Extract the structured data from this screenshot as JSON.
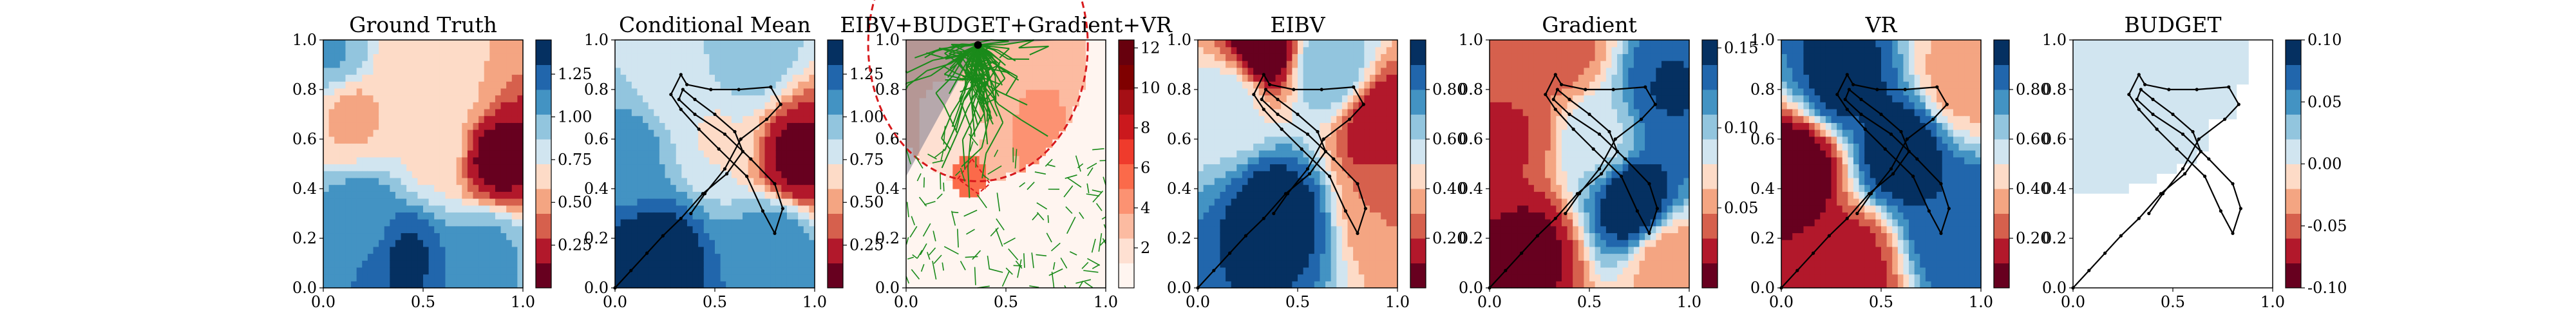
{
  "chart_data": [
    {
      "type": "heatmap",
      "title": "Ground Truth",
      "xlim": [
        0,
        1
      ],
      "ylim": [
        0,
        1
      ],
      "xticks": [
        "0.0",
        "0.5",
        "1.0"
      ],
      "yticks": [
        "0.0",
        "0.2",
        "0.4",
        "0.6",
        "0.8",
        "1.0"
      ],
      "colormap": "RdBu",
      "colorbar": {
        "range": [
          0.0,
          1.45
        ],
        "ticks": [
          0.25,
          0.5,
          0.75,
          1.0,
          1.25
        ]
      },
      "field": [
        {
          "x": 0.87,
          "y": 0.52,
          "v": 0.08
        },
        {
          "x": 0.45,
          "y": 0.92,
          "v": 0.6
        },
        {
          "x": 0.62,
          "y": 0.78,
          "v": 0.62
        },
        {
          "x": 0.15,
          "y": 0.7,
          "v": 0.55
        },
        {
          "x": 0.55,
          "y": 0.55,
          "v": 0.7
        },
        {
          "x": 0.42,
          "y": 0.12,
          "v": 1.32
        },
        {
          "x": 0.2,
          "y": 0.28,
          "v": 1.1
        },
        {
          "x": 0.8,
          "y": 0.15,
          "v": 1.05
        },
        {
          "x": 0.05,
          "y": 0.95,
          "v": 1.02
        }
      ]
    },
    {
      "type": "heatmap",
      "title": "Conditional Mean",
      "xlim": [
        0,
        1
      ],
      "ylim": [
        0,
        1
      ],
      "xticks": [
        "0.0",
        "0.5",
        "1.0"
      ],
      "yticks": [
        "0.0",
        "0.2",
        "0.4",
        "0.6",
        "0.8",
        "1.0"
      ],
      "colormap": "RdBu",
      "colorbar": {
        "range": [
          0.0,
          1.45
        ],
        "ticks": [
          0.25,
          0.5,
          0.75,
          1.0,
          1.25
        ]
      },
      "field": [
        {
          "x": 0.92,
          "y": 0.52,
          "v": 0.1
        },
        {
          "x": 0.5,
          "y": 0.62,
          "v": 0.72
        },
        {
          "x": 0.3,
          "y": 0.85,
          "v": 0.78
        },
        {
          "x": 0.08,
          "y": 0.55,
          "v": 1.05
        },
        {
          "x": 0.2,
          "y": 0.12,
          "v": 1.42
        },
        {
          "x": 0.8,
          "y": 0.18,
          "v": 1.12
        },
        {
          "x": 0.65,
          "y": 0.95,
          "v": 1.0
        }
      ],
      "path": [
        [
          0.0,
          0.0
        ],
        [
          0.08,
          0.07
        ],
        [
          0.16,
          0.14
        ],
        [
          0.24,
          0.21
        ],
        [
          0.33,
          0.28
        ],
        [
          0.44,
          0.38
        ],
        [
          0.56,
          0.46
        ],
        [
          0.64,
          0.55
        ],
        [
          0.6,
          0.63
        ],
        [
          0.5,
          0.7
        ],
        [
          0.4,
          0.76
        ],
        [
          0.34,
          0.8
        ],
        [
          0.32,
          0.76
        ],
        [
          0.4,
          0.7
        ],
        [
          0.55,
          0.62
        ],
        [
          0.68,
          0.52
        ],
        [
          0.8,
          0.42
        ],
        [
          0.84,
          0.32
        ],
        [
          0.8,
          0.22
        ],
        [
          0.74,
          0.31
        ],
        [
          0.66,
          0.45
        ],
        [
          0.52,
          0.56
        ],
        [
          0.42,
          0.64
        ],
        [
          0.33,
          0.72
        ],
        [
          0.28,
          0.78
        ],
        [
          0.33,
          0.86
        ],
        [
          0.36,
          0.82
        ],
        [
          0.48,
          0.8
        ],
        [
          0.62,
          0.8
        ],
        [
          0.78,
          0.81
        ],
        [
          0.83,
          0.74
        ],
        [
          0.76,
          0.68
        ],
        [
          0.63,
          0.6
        ],
        [
          0.55,
          0.48
        ],
        [
          0.45,
          0.38
        ],
        [
          0.38,
          0.3
        ]
      ]
    },
    {
      "type": "heatmap",
      "title": "EIBV+BUDGET+Gradient+VR",
      "xlim": [
        0,
        1
      ],
      "ylim": [
        0,
        1
      ],
      "xticks": [
        "0.0",
        "0.5",
        "1.0"
      ],
      "yticks": [
        "0.0",
        "0.2",
        "0.4",
        "0.6",
        "0.8",
        "1.0"
      ],
      "colormap": "Reds",
      "colorbar": {
        "range": [
          0,
          12.4
        ],
        "ticks": [
          2,
          4,
          6,
          8,
          10,
          12
        ]
      },
      "budget_circle": {
        "cx": 0.36,
        "cy": 0.98,
        "r": 0.55
      },
      "current_location": [
        0.36,
        0.98
      ],
      "tree": "random RRT* branches (green)"
    },
    {
      "type": "heatmap",
      "title": "EIBV",
      "xlim": [
        0,
        1
      ],
      "ylim": [
        0,
        1
      ],
      "xticks": [
        "0.0",
        "0.5",
        "1.0"
      ],
      "yticks": [
        "0.0",
        "0.2",
        "0.4",
        "0.6",
        "0.8",
        "1.0"
      ],
      "colormap": "RdBu",
      "colorbar": {
        "range": [
          0.0,
          1.0
        ],
        "ticks": [
          0.2,
          0.4,
          0.6,
          0.8
        ]
      },
      "field": [
        {
          "x": 0.33,
          "y": 0.98,
          "v": 0.0
        },
        {
          "x": 0.92,
          "y": 0.65,
          "v": 0.1
        },
        {
          "x": 0.15,
          "y": 0.75,
          "v": 0.55
        },
        {
          "x": 0.95,
          "y": 0.35,
          "v": 0.3
        },
        {
          "x": 0.4,
          "y": 0.3,
          "v": 0.98
        },
        {
          "x": 0.65,
          "y": 0.9,
          "v": 0.7
        }
      ]
    },
    {
      "type": "heatmap",
      "title": "Gradient",
      "xlim": [
        0,
        1
      ],
      "ylim": [
        0,
        1
      ],
      "xticks": [
        "0.0",
        "0.5",
        "1.0"
      ],
      "yticks": [
        "0.0",
        "0.2",
        "0.4",
        "0.6",
        "0.8",
        "1.0"
      ],
      "colormap": "RdBu",
      "colorbar": {
        "range": [
          0.0,
          0.155
        ],
        "ticks": [
          0.05,
          0.1,
          0.15
        ]
      },
      "field": [
        {
          "x": 0.1,
          "y": 0.6,
          "v": 0.03
        },
        {
          "x": 0.2,
          "y": 0.15,
          "v": 0.01
        },
        {
          "x": 0.35,
          "y": 0.95,
          "v": 0.04
        },
        {
          "x": 0.9,
          "y": 0.8,
          "v": 0.14
        },
        {
          "x": 0.72,
          "y": 0.35,
          "v": 0.155
        },
        {
          "x": 0.55,
          "y": 0.6,
          "v": 0.09
        },
        {
          "x": 0.9,
          "y": 0.1,
          "v": 0.05
        }
      ]
    },
    {
      "type": "heatmap",
      "title": "VR",
      "xlim": [
        0,
        1
      ],
      "ylim": [
        0,
        1
      ],
      "xticks": [
        "0.0",
        "0.5",
        "1.0"
      ],
      "yticks": [
        "0.0",
        "0.2",
        "0.4",
        "0.6",
        "0.8",
        "1.0"
      ],
      "colormap": "RdBu",
      "colorbar": {
        "range": [
          0.0,
          1.0
        ],
        "ticks": [
          0.2,
          0.4,
          0.6,
          0.8
        ]
      },
      "field": [
        {
          "x": 0.08,
          "y": 0.48,
          "v": 0.0
        },
        {
          "x": 0.35,
          "y": 0.1,
          "v": 0.15
        },
        {
          "x": 0.9,
          "y": 0.85,
          "v": 0.35
        },
        {
          "x": 0.6,
          "y": 0.55,
          "v": 1.0
        },
        {
          "x": 0.3,
          "y": 0.85,
          "v": 0.95
        },
        {
          "x": 0.85,
          "y": 0.25,
          "v": 0.9
        }
      ]
    },
    {
      "type": "heatmap",
      "title": "BUDGET",
      "xlim": [
        0,
        1
      ],
      "ylim": [
        0,
        1
      ],
      "xticks": [
        "0.0",
        "0.5",
        "1.0"
      ],
      "yticks": [
        "0.0",
        "0.2",
        "0.4",
        "0.6",
        "0.8",
        "1.0"
      ],
      "colormap": "RdBu",
      "colorbar": {
        "range": [
          -0.1,
          0.1
        ],
        "ticks": [
          -0.1,
          -0.05,
          0.0,
          0.05,
          0.1
        ]
      },
      "constant_value": 0.0
    }
  ]
}
